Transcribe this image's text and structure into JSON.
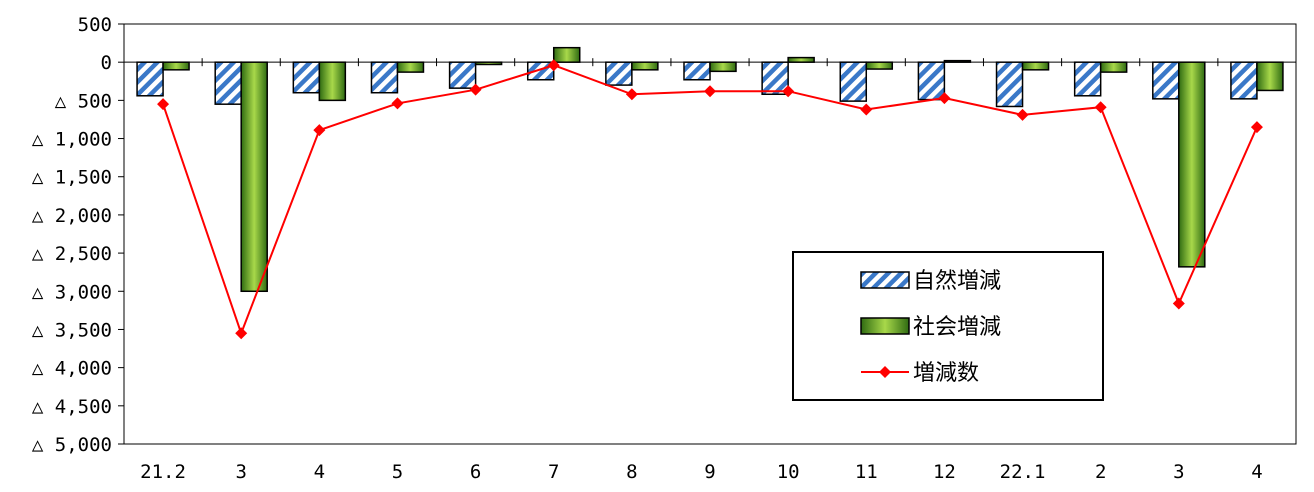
{
  "chart_data": {
    "type": "bar",
    "categories": [
      "21.2",
      "3",
      "4",
      "5",
      "6",
      "7",
      "8",
      "9",
      "10",
      "11",
      "12",
      "22.1",
      "2",
      "3",
      "4"
    ],
    "series": [
      {
        "name": "自然増減",
        "kind": "bar",
        "style": "hatched",
        "color": "#3a78c8",
        "values": [
          -440,
          -550,
          -400,
          -400,
          -340,
          -230,
          -300,
          -230,
          -420,
          -510,
          -490,
          -580,
          -440,
          -480,
          -480
        ]
      },
      {
        "name": "社会増減",
        "kind": "bar",
        "style": "gradient",
        "color": "#6aa82a",
        "values": [
          -100,
          -3000,
          -500,
          -130,
          -30,
          190,
          -100,
          -120,
          60,
          -90,
          20,
          -100,
          -130,
          -2680,
          -370
        ]
      },
      {
        "name": "増減数",
        "kind": "line",
        "marker": "diamond",
        "color": "#ff0000",
        "values": [
          -550,
          -3550,
          -890,
          -540,
          -360,
          -40,
          -420,
          -380,
          -380,
          -620,
          -470,
          -690,
          -590,
          -3160,
          -850
        ]
      }
    ],
    "y_tick_labels": [
      "500",
      "0",
      "△  500",
      "△ 1,000",
      "△ 1,500",
      "△ 2,000",
      "△ 2,500",
      "△ 3,000",
      "△ 3,500",
      "△ 4,000",
      "△ 4,500",
      "△ 5,000"
    ],
    "y_tick_values": [
      500,
      0,
      -500,
      -1000,
      -1500,
      -2000,
      -2500,
      -3000,
      -3500,
      -4000,
      -4500,
      -5000
    ],
    "ylim": [
      -5000,
      500
    ],
    "grid": false,
    "legend_position": "center-right",
    "title": "",
    "xlabel": "",
    "ylabel": ""
  }
}
